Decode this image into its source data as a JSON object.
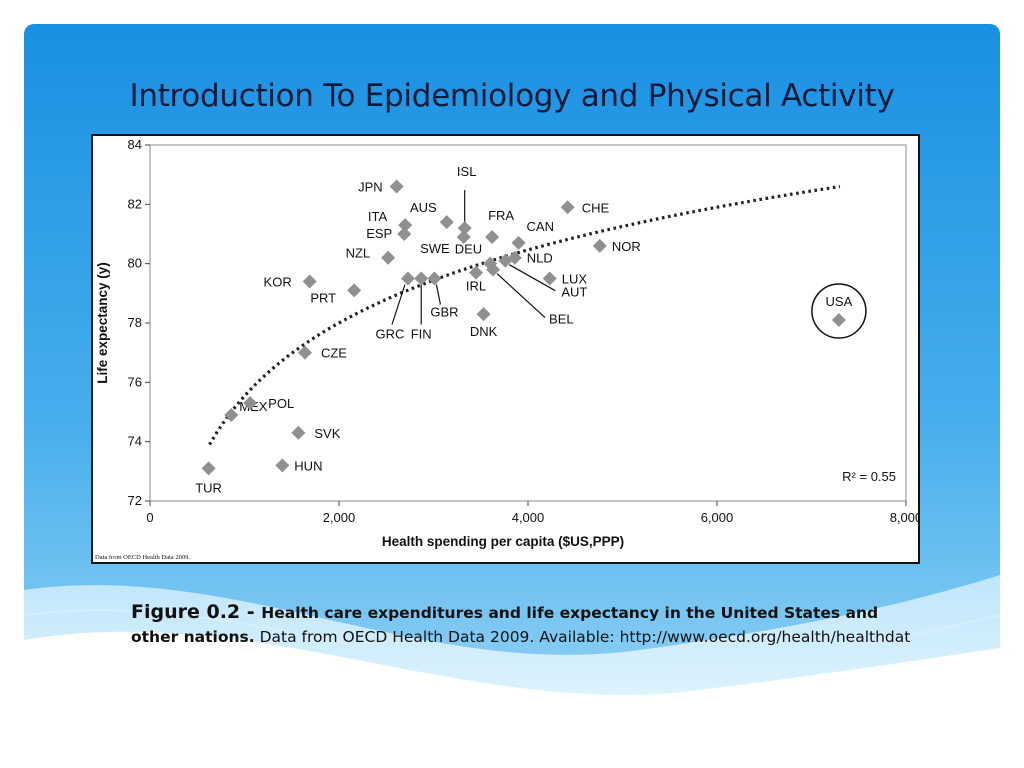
{
  "slide": {
    "title": "Introduction To Epidemiology and Physical Activity",
    "colors": {
      "accent": "#1a8fe0",
      "accent_light": "#7cc6f2",
      "marker": "#909090"
    }
  },
  "chart_data": {
    "type": "scatter",
    "title": "",
    "xlabel": "Health spending per capita ($US,PPP)",
    "ylabel": "Life expectancy (y)",
    "xlim": [
      0,
      8000
    ],
    "ylim": [
      72,
      84
    ],
    "x_ticks": [
      0,
      2000,
      4000,
      6000,
      8000
    ],
    "x_tick_labels": [
      "0",
      "2,000",
      "4,000",
      "6,000",
      "8,000"
    ],
    "y_ticks": [
      72,
      74,
      76,
      78,
      80,
      82,
      84
    ],
    "y_tick_labels": [
      "72",
      "74",
      "76",
      "78",
      "80",
      "82",
      "84"
    ],
    "grid": false,
    "points": [
      {
        "label": "TUR",
        "x": 620,
        "y": 73.1
      },
      {
        "label": "MEX",
        "x": 860,
        "y": 74.9
      },
      {
        "label": "POL",
        "x": 1060,
        "y": 75.3
      },
      {
        "label": "HUN",
        "x": 1400,
        "y": 73.2
      },
      {
        "label": "SVK",
        "x": 1570,
        "y": 74.3
      },
      {
        "label": "CZE",
        "x": 1640,
        "y": 77.0
      },
      {
        "label": "KOR",
        "x": 1690,
        "y": 79.4
      },
      {
        "label": "PRT",
        "x": 2160,
        "y": 79.1
      },
      {
        "label": "NZL",
        "x": 2520,
        "y": 80.2
      },
      {
        "label": "JPN",
        "x": 2610,
        "y": 82.6
      },
      {
        "label": "ITA",
        "x": 2700,
        "y": 81.3
      },
      {
        "label": "ESP",
        "x": 2690,
        "y": 81.0
      },
      {
        "label": "GRC",
        "x": 2730,
        "y": 79.5
      },
      {
        "label": "FIN",
        "x": 2870,
        "y": 79.5
      },
      {
        "label": "GBR",
        "x": 3010,
        "y": 79.5
      },
      {
        "label": "AUS",
        "x": 3140,
        "y": 81.4
      },
      {
        "label": "ISL",
        "x": 3330,
        "y": 81.2
      },
      {
        "label": "SWE",
        "x": 3320,
        "y": 80.9
      },
      {
        "label": "IRL",
        "x": 3450,
        "y": 79.7
      },
      {
        "label": "DNK",
        "x": 3530,
        "y": 78.3
      },
      {
        "label": "DEU",
        "x": 3600,
        "y": 80.0
      },
      {
        "label": "FRA",
        "x": 3620,
        "y": 80.9
      },
      {
        "label": "BEL",
        "x": 3630,
        "y": 79.8
      },
      {
        "label": "AUT",
        "x": 3760,
        "y": 80.1
      },
      {
        "label": "NLD",
        "x": 3860,
        "y": 80.2
      },
      {
        "label": "CAN",
        "x": 3900,
        "y": 80.7
      },
      {
        "label": "LUX",
        "x": 4230,
        "y": 79.5
      },
      {
        "label": "CHE",
        "x": 4420,
        "y": 81.9
      },
      {
        "label": "NOR",
        "x": 4760,
        "y": 80.6
      },
      {
        "label": "USA",
        "x": 7290,
        "y": 78.1
      }
    ],
    "trend": {
      "type": "log",
      "style": "dotted",
      "x_start": 630,
      "x_end": 7300
    },
    "annotations": {
      "r_squared": "R² = 0.55",
      "circled": "USA",
      "source_note": "Data from OECD Health Data 2009."
    }
  },
  "caption": {
    "figure_label": "Figure 0.2 - ",
    "bold_text": "Health care expenditures and life expectancy in the United States and other nations.",
    "regular_text": " Data from OECD Health Data 2009. Available: http://www.oecd.org/health/healthdat"
  }
}
